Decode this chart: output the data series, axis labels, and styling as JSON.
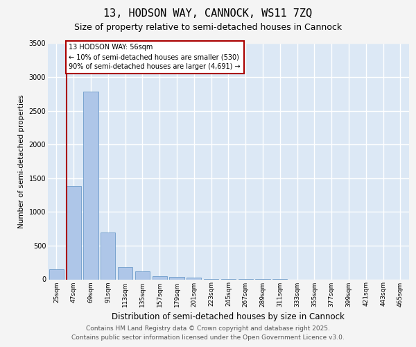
{
  "title": "13, HODSON WAY, CANNOCK, WS11 7ZQ",
  "subtitle": "Size of property relative to semi-detached houses in Cannock",
  "xlabel": "Distribution of semi-detached houses by size in Cannock",
  "ylabel": "Number of semi-detached properties",
  "categories": [
    "25sqm",
    "47sqm",
    "69sqm",
    "91sqm",
    "113sqm",
    "135sqm",
    "157sqm",
    "179sqm",
    "201sqm",
    "223sqm",
    "245sqm",
    "267sqm",
    "289sqm",
    "311sqm",
    "333sqm",
    "355sqm",
    "377sqm",
    "399sqm",
    "421sqm",
    "443sqm",
    "465sqm"
  ],
  "values": [
    150,
    1380,
    2780,
    700,
    180,
    120,
    50,
    40,
    30,
    5,
    2,
    2,
    1,
    1,
    0,
    0,
    0,
    0,
    0,
    0,
    0
  ],
  "bar_color": "#aec6e8",
  "bar_edge_color": "#5a8fc2",
  "ylim": [
    0,
    3500
  ],
  "yticks": [
    0,
    500,
    1000,
    1500,
    2000,
    2500,
    3000,
    3500
  ],
  "property_line_color": "#aa0000",
  "annotation_line1": "13 HODSON WAY: 56sqm",
  "annotation_line2": "← 10% of semi-detached houses are smaller (530)",
  "annotation_line3": "90% of semi-detached houses are larger (4,691) →",
  "footer_line1": "Contains HM Land Registry data © Crown copyright and database right 2025.",
  "footer_line2": "Contains public sector information licensed under the Open Government Licence v3.0.",
  "plot_bg": "#dce8f5",
  "fig_bg": "#f4f4f4",
  "grid_color": "#ffffff",
  "title_fontsize": 11,
  "subtitle_fontsize": 9,
  "tick_fontsize": 6.5,
  "ylabel_fontsize": 7.5,
  "xlabel_fontsize": 8.5,
  "footer_fontsize": 6.5,
  "ann_fontsize": 7
}
